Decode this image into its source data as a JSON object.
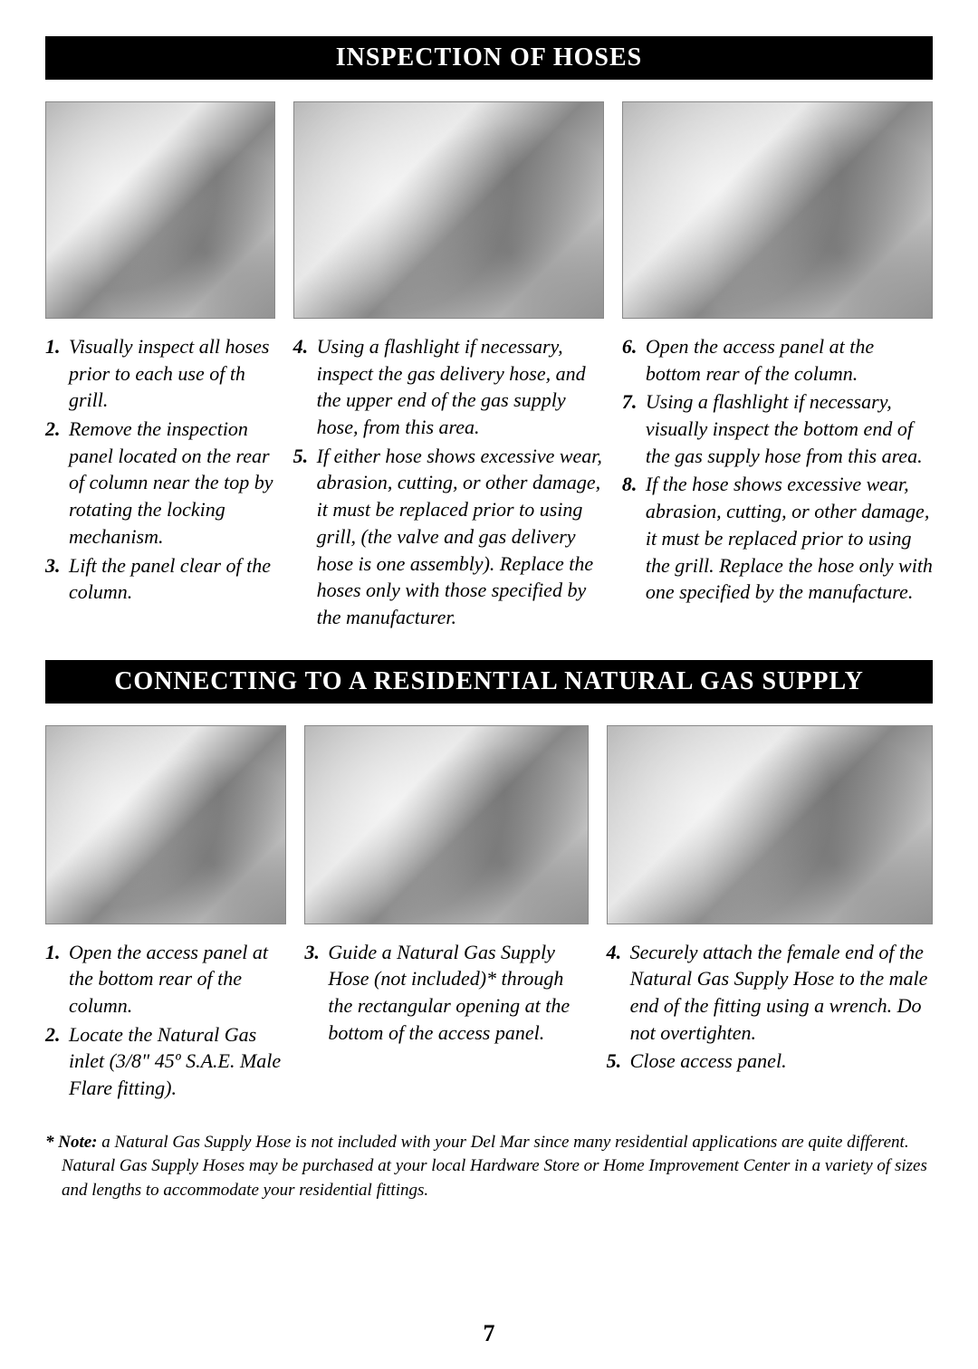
{
  "page_number": "7",
  "section1": {
    "title": "INSPECTION OF HOSES",
    "col1": [
      {
        "n": "1.",
        "t": "Visually inspect all hoses prior to each use of th grill."
      },
      {
        "n": "2.",
        "t": "Remove the inspection panel located on the rear of column near the top by rotating the locking   mechanism."
      },
      {
        "n": "3.",
        "t": "Lift the panel clear of the column."
      }
    ],
    "col2": [
      {
        "n": "4.",
        "t": "Using a flashlight if necessary, inspect the gas delivery hose, and the upper end of the gas supply hose, from this area."
      },
      {
        "n": "5.",
        "t": "If either hose shows excessive wear, abrasion, cutting, or other damage, it must be replaced prior to using grill, (the valve and gas delivery hose is one assembly). Replace the hoses only with those specified by the  manufacturer."
      }
    ],
    "col3": [
      {
        "n": "6.",
        "t": "Open the access panel at the bottom rear of the column."
      },
      {
        "n": "7.",
        "t": "Using a flashlight if necessary, visually inspect the bottom end of the gas supply hose from this area."
      },
      {
        "n": "8.",
        "t": "If the hose shows excessive wear, abrasion, cutting, or other damage, it must be replaced prior to using the grill.  Replace the hose only with one specified by the manufacture."
      }
    ]
  },
  "section2": {
    "title": "CONNECTING TO A RESIDENTIAL NATURAL GAS SUPPLY",
    "col1": [
      {
        "n": "1.",
        "t": "Open the access panel at the bottom rear of the column."
      },
      {
        "n": "2.",
        "t": "Locate the Natural Gas inlet (3/8\" 45º S.A.E. Male Flare fitting)."
      }
    ],
    "col2": [
      {
        "n": "3.",
        "t": "Guide a Natural Gas Supply Hose (not included)* through the rectangular opening at the bottom of the access panel."
      }
    ],
    "col3": [
      {
        "n": "4.",
        "t": "Securely attach the female end of the Natural Gas Supply Hose to the male end of the fitting using a wrench. Do not overtighten."
      },
      {
        "n": "5.",
        "t": "Close access panel."
      }
    ]
  },
  "footnote": {
    "label": "*  Note: ",
    "text": "a Natural Gas Supply Hose is not included with your Del Mar since many residential applications are quite different. Natural Gas Supply Hoses may be purchased at your local Hardware Store or Home Improvement Center in a variety of sizes and lengths to accommodate your residential fittings."
  }
}
